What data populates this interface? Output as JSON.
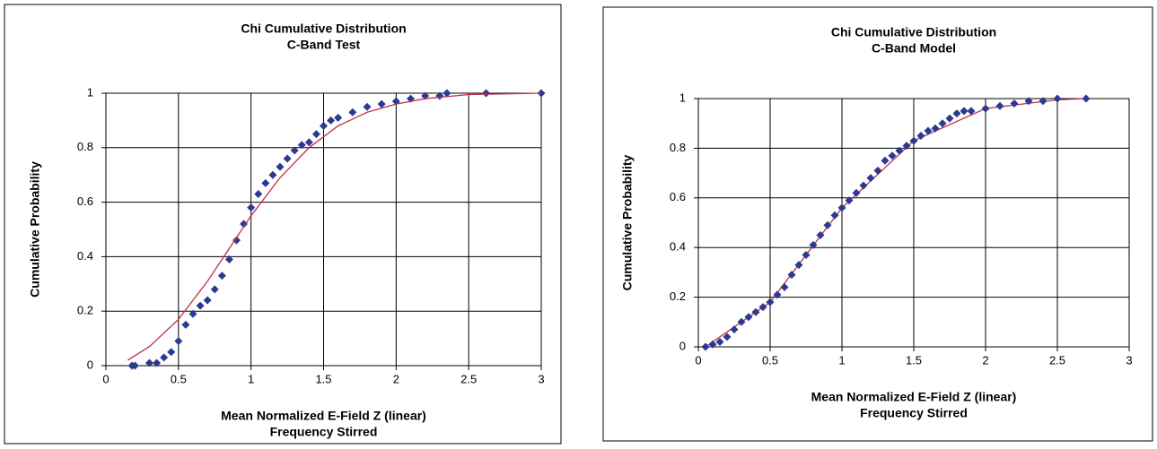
{
  "chart_data": [
    {
      "type": "scatter",
      "title": [
        "Chi Cumulative Distribution",
        "C-Band Test"
      ],
      "xlabel": [
        "Mean Normalized E-Field Z (linear)",
        "Frequency Stirred"
      ],
      "ylabel": "Cumulative Probability",
      "xlim": [
        0,
        3
      ],
      "xticks": [
        0,
        0.5,
        1,
        1.5,
        2,
        2.5,
        3
      ],
      "ylim": [
        0,
        1
      ],
      "yticks": [
        0,
        0.2,
        0.4,
        0.6,
        0.8,
        1
      ],
      "grid": true,
      "series": [
        {
          "style": "markers",
          "color": "#2b3990",
          "x": [
            0.18,
            0.2,
            0.3,
            0.35,
            0.4,
            0.45,
            0.5,
            0.55,
            0.6,
            0.65,
            0.7,
            0.75,
            0.8,
            0.85,
            0.9,
            0.95,
            1.0,
            1.05,
            1.1,
            1.15,
            1.2,
            1.25,
            1.3,
            1.35,
            1.4,
            1.45,
            1.5,
            1.55,
            1.6,
            1.7,
            1.8,
            1.9,
            2.0,
            2.1,
            2.2,
            2.3,
            2.35,
            2.62,
            3.0
          ],
          "values": [
            0,
            0,
            0.01,
            0.01,
            0.03,
            0.05,
            0.09,
            0.15,
            0.19,
            0.22,
            0.24,
            0.28,
            0.33,
            0.39,
            0.46,
            0.52,
            0.58,
            0.63,
            0.67,
            0.7,
            0.73,
            0.76,
            0.79,
            0.81,
            0.82,
            0.85,
            0.88,
            0.9,
            0.91,
            0.93,
            0.95,
            0.96,
            0.97,
            0.98,
            0.99,
            0.99,
            1,
            1,
            1
          ]
        },
        {
          "style": "line",
          "color": "#c0304a",
          "x": [
            0.15,
            0.3,
            0.5,
            0.7,
            0.9,
            1.0,
            1.2,
            1.4,
            1.6,
            1.8,
            2.0,
            2.2,
            2.5,
            3.0
          ],
          "values": [
            0.02,
            0.07,
            0.17,
            0.31,
            0.47,
            0.55,
            0.69,
            0.8,
            0.88,
            0.93,
            0.96,
            0.98,
            0.995,
            1
          ]
        }
      ]
    },
    {
      "type": "scatter",
      "title": [
        "Chi Cumulative Distribution",
        "C-Band Model"
      ],
      "xlabel": [
        "Mean Normalized E-Field Z (linear)",
        "Frequency Stirred"
      ],
      "ylabel": "Cumulative Probability",
      "xlim": [
        0,
        3
      ],
      "xticks": [
        0,
        0.5,
        1,
        1.5,
        2,
        2.5,
        3
      ],
      "ylim": [
        0,
        1
      ],
      "yticks": [
        0,
        0.2,
        0.4,
        0.6,
        0.8,
        1
      ],
      "grid": true,
      "series": [
        {
          "style": "line",
          "color": "#c0304a",
          "x": [
            0.05,
            0.5,
            1.0,
            1.5,
            2.0,
            2.5,
            2.7
          ],
          "values": [
            0,
            0.18,
            0.56,
            0.83,
            0.96,
            0.995,
            1
          ]
        },
        {
          "style": "markers",
          "color": "#2b3990",
          "x": [
            0.05,
            0.1,
            0.15,
            0.2,
            0.25,
            0.3,
            0.35,
            0.4,
            0.45,
            0.5,
            0.55,
            0.6,
            0.65,
            0.7,
            0.75,
            0.8,
            0.85,
            0.9,
            0.95,
            1.0,
            1.05,
            1.1,
            1.15,
            1.2,
            1.25,
            1.3,
            1.35,
            1.4,
            1.45,
            1.5,
            1.55,
            1.6,
            1.65,
            1.7,
            1.75,
            1.8,
            1.85,
            1.9,
            2.0,
            2.1,
            2.2,
            2.3,
            2.4,
            2.5,
            2.7
          ],
          "values": [
            0,
            0.01,
            0.02,
            0.04,
            0.07,
            0.1,
            0.12,
            0.14,
            0.16,
            0.18,
            0.21,
            0.24,
            0.29,
            0.33,
            0.37,
            0.41,
            0.45,
            0.49,
            0.53,
            0.56,
            0.59,
            0.62,
            0.65,
            0.68,
            0.71,
            0.75,
            0.77,
            0.79,
            0.81,
            0.83,
            0.85,
            0.87,
            0.88,
            0.9,
            0.92,
            0.94,
            0.95,
            0.95,
            0.96,
            0.97,
            0.98,
            0.99,
            0.99,
            1,
            1
          ]
        }
      ]
    }
  ]
}
